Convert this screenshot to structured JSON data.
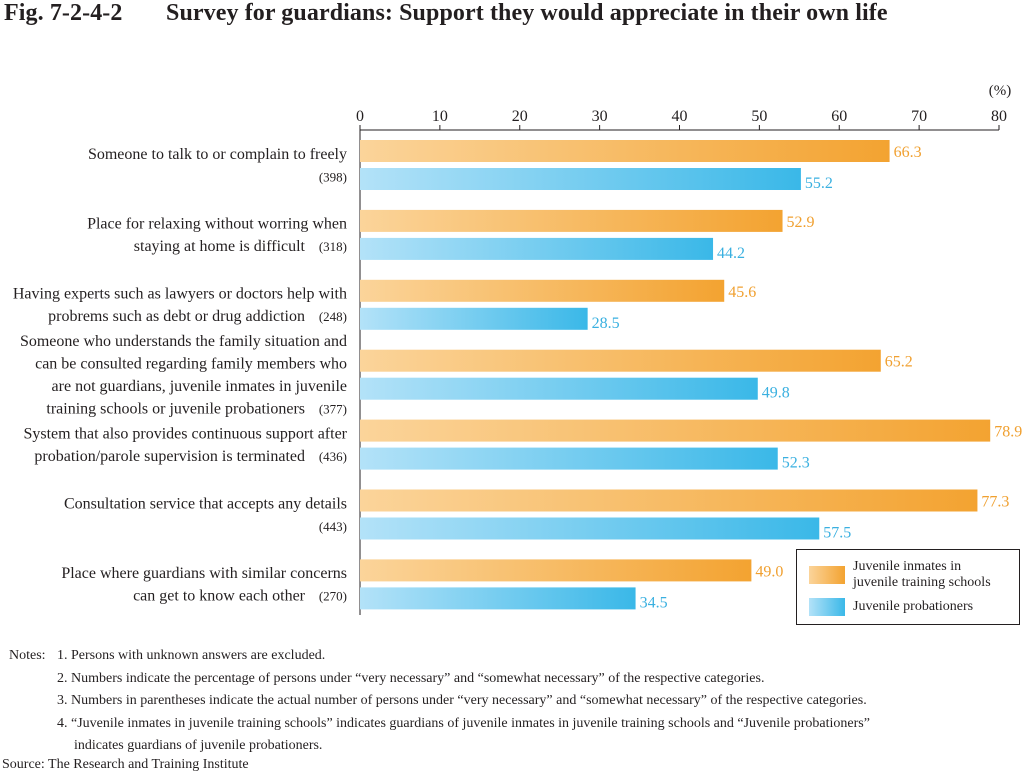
{
  "figure": {
    "number": "Fig. 7-2-4-2",
    "title": "Survey for guardians: Support they would appreciate in their own life"
  },
  "colors": {
    "orange_light": "#fbd49a",
    "orange": "#f3a331",
    "blue_light": "#b3e2f8",
    "blue": "#3ab8e8",
    "orange_label": "#f0a030",
    "blue_label": "#3ab0e0",
    "text": "#231f20"
  },
  "chart_data": {
    "type": "bar",
    "orientation": "horizontal",
    "unit_label": "(%)",
    "xlim": [
      0,
      80
    ],
    "ticks": [
      0,
      10,
      20,
      30,
      40,
      50,
      60,
      70,
      80
    ],
    "categories": [
      {
        "lines": [
          "Someone to talk to or complain to freely"
        ],
        "n": "(398)"
      },
      {
        "lines": [
          "Place for relaxing without worring when",
          "staying at home is difficult"
        ],
        "n": "(318)"
      },
      {
        "lines": [
          "Having experts such as lawyers or doctors help with",
          "probrems such as debt or drug addiction"
        ],
        "n": "(248)"
      },
      {
        "lines": [
          "Someone who understands the family situation and",
          "can be consulted regarding family members who",
          "are not guardians, juvenile inmates in juvenile",
          "training schools or juvenile probationers"
        ],
        "n": "(377)"
      },
      {
        "lines": [
          "System that also provides continuous support after",
          "probation/parole supervision is terminated"
        ],
        "n": "(436)"
      },
      {
        "lines": [
          "Consultation service that accepts any details"
        ],
        "n": "(443)"
      },
      {
        "lines": [
          "Place where guardians with similar concerns",
          "can get to know each other"
        ],
        "n": "(270)"
      }
    ],
    "series": [
      {
        "name": "Juvenile inmates in juvenile training schools",
        "values": [
          66.3,
          52.9,
          45.6,
          65.2,
          78.9,
          77.3,
          49.0
        ],
        "labels": [
          "66.3",
          "52.9",
          "45.6",
          "65.2",
          "78.9",
          "77.3",
          "49.0"
        ]
      },
      {
        "name": "Juvenile probationers",
        "values": [
          55.2,
          44.2,
          28.5,
          49.8,
          52.3,
          57.5,
          34.5
        ],
        "labels": [
          "55.2",
          "44.2",
          "28.5",
          "49.8",
          "52.3",
          "57.5",
          "34.5"
        ]
      }
    ],
    "legend": {
      "position": "bottom-right",
      "items": [
        {
          "lines": [
            "Juvenile inmates in",
            "juvenile training schools"
          ]
        },
        {
          "lines": [
            "Juvenile probationers"
          ]
        }
      ]
    }
  },
  "notes": {
    "lead": "Notes:",
    "items": [
      "1. Persons with unknown answers are excluded.",
      "2. Numbers indicate the percentage of persons under “very necessary” and “somewhat necessary” of the respective categories.",
      "3. Numbers in parentheses indicate the actual number of persons under “very necessary” and “somewhat necessary” of the respective categories.",
      "4. “Juvenile inmates in juvenile training schools” indicates guardians of juvenile inmates in juvenile training schools and “Juvenile probationers”",
      "indicates guardians of juvenile probationers."
    ]
  },
  "source": "Source: The Research and Training Institute"
}
